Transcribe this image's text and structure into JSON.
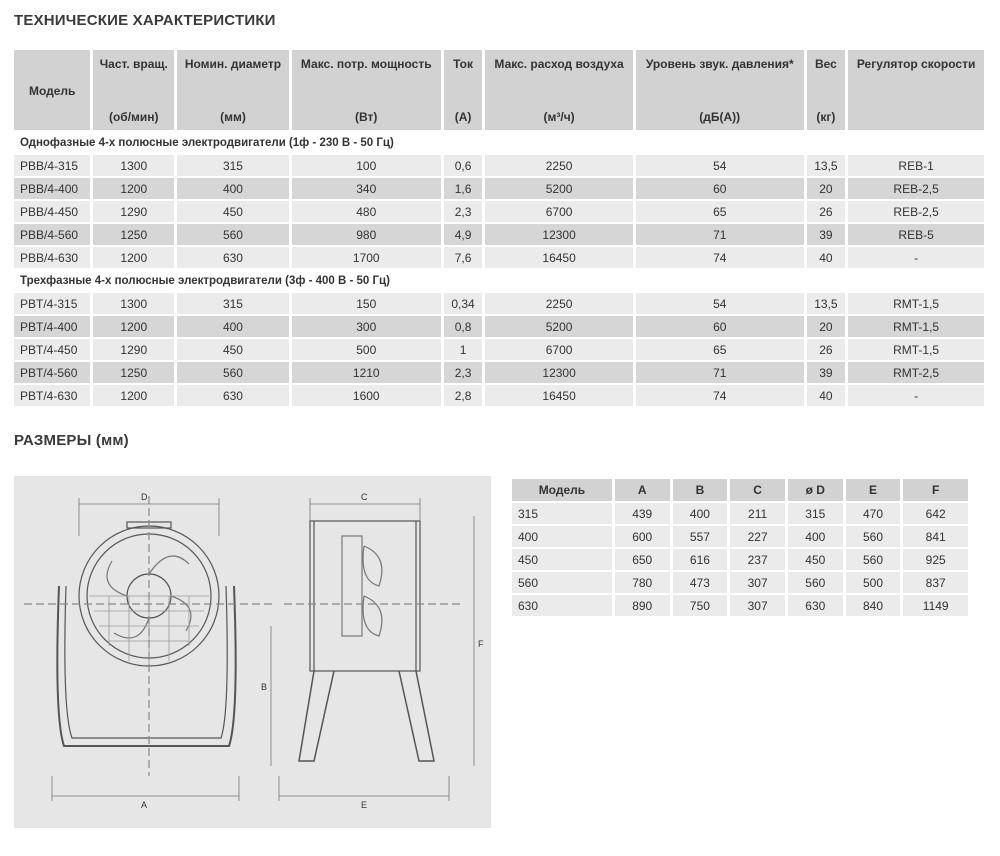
{
  "spec": {
    "title": "ТЕХНИЧЕСКИЕ ХАРАКТЕРИСТИКИ",
    "headers": [
      {
        "label": "Модель",
        "unit": ""
      },
      {
        "label": "Част. вращ.",
        "unit": "(об/мин)"
      },
      {
        "label": "Номин. диаметр",
        "unit": "(мм)"
      },
      {
        "label": "Макс. потр. мощность",
        "unit": "(Вт)"
      },
      {
        "label": "Ток",
        "unit": "(A)"
      },
      {
        "label": "Макс. расход воздуха",
        "unit": "(м³/ч)"
      },
      {
        "label": "Уровень звук. давления*",
        "unit": "(дБ(A))"
      },
      {
        "label": "Вес",
        "unit": "(кг)"
      },
      {
        "label": "Регулятор скорости",
        "unit": ""
      }
    ],
    "sections": [
      {
        "title": "Однофазные 4-х полюсные электродвигатели (1ф - 230 В - 50 Гц)",
        "rows": [
          [
            "PBB/4-315",
            "1300",
            "315",
            "100",
            "0,6",
            "2250",
            "54",
            "13,5",
            "REB-1"
          ],
          [
            "PBB/4-400",
            "1200",
            "400",
            "340",
            "1,6",
            "5200",
            "60",
            "20",
            "REB-2,5"
          ],
          [
            "PBB/4-450",
            "1290",
            "450",
            "480",
            "2,3",
            "6700",
            "65",
            "26",
            "REB-2,5"
          ],
          [
            "PBB/4-560",
            "1250",
            "560",
            "980",
            "4,9",
            "12300",
            "71",
            "39",
            "REB-5"
          ],
          [
            "PBB/4-630",
            "1200",
            "630",
            "1700",
            "7,6",
            "16450",
            "74",
            "40",
            "-"
          ]
        ]
      },
      {
        "title": "Трехфазные 4-х полюсные электродвигатели (3ф - 400 В - 50 Гц)",
        "rows": [
          [
            "PBT/4-315",
            "1300",
            "315",
            "150",
            "0,34",
            "2250",
            "54",
            "13,5",
            "RMT-1,5"
          ],
          [
            "PBT/4-400",
            "1200",
            "400",
            "300",
            "0,8",
            "5200",
            "60",
            "20",
            "RMT-1,5"
          ],
          [
            "PBT/4-450",
            "1290",
            "450",
            "500",
            "1",
            "6700",
            "65",
            "26",
            "RMT-1,5"
          ],
          [
            "PBT/4-560",
            "1250",
            "560",
            "1210",
            "2,3",
            "12300",
            "71",
            "39",
            "RMT-2,5"
          ],
          [
            "PBT/4-630",
            "1200",
            "630",
            "1600",
            "2,8",
            "16450",
            "74",
            "40",
            "-"
          ]
        ]
      }
    ]
  },
  "dimensions": {
    "title": "РАЗМЕРЫ (мм)",
    "headers": [
      "Модель",
      "A",
      "B",
      "C",
      "ø D",
      "E",
      "F"
    ],
    "rows": [
      [
        "315",
        "439",
        "400",
        "211",
        "315",
        "470",
        "642"
      ],
      [
        "400",
        "600",
        "557",
        "227",
        "400",
        "560",
        "841"
      ],
      [
        "450",
        "650",
        "616",
        "237",
        "450",
        "560",
        "925"
      ],
      [
        "560",
        "780",
        "473",
        "307",
        "560",
        "500",
        "837"
      ],
      [
        "630",
        "890",
        "750",
        "307",
        "630",
        "840",
        "1149"
      ]
    ],
    "drawing_labels": {
      "a": "A",
      "b": "B",
      "c": "C",
      "d": "D",
      "e": "E",
      "f": "F"
    }
  }
}
